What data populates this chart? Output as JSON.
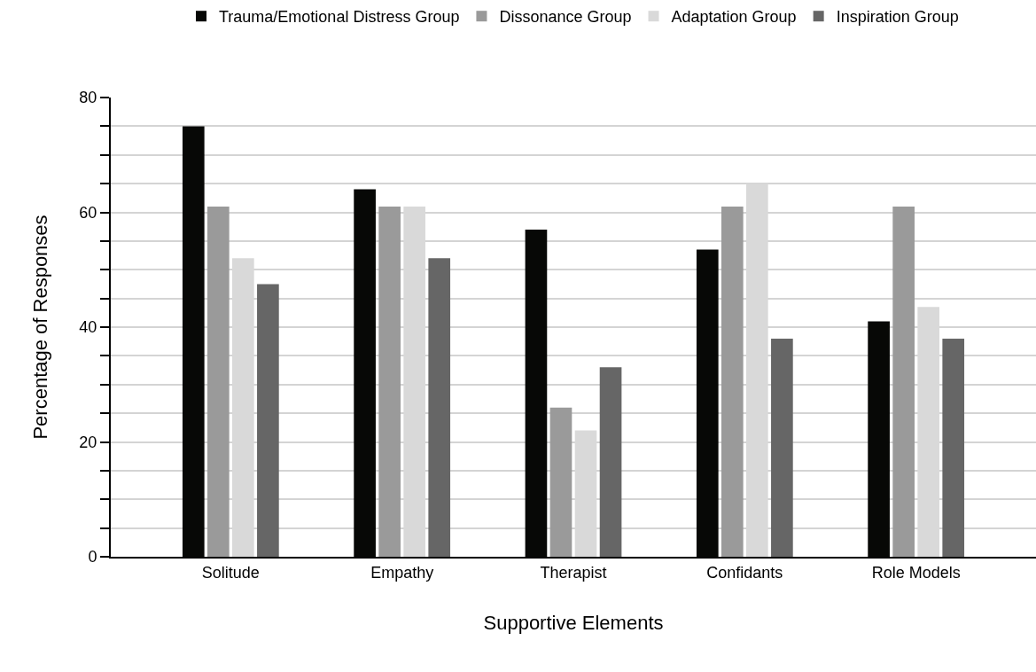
{
  "chart_data": {
    "type": "bar",
    "xlabel": "Supportive Elements",
    "ylabel": "Percentage of Responses",
    "categories": [
      "Solitude",
      "Empathy",
      "Therapist",
      "Confidants",
      "Role Models"
    ],
    "series": [
      {
        "name": "Trauma/Emotional Distress Group",
        "color": "#070806",
        "values": [
          75,
          64,
          57,
          53.5,
          41
        ]
      },
      {
        "name": "Dissonance Group",
        "color": "#9a9a9a",
        "values": [
          61,
          61,
          26,
          61,
          61
        ]
      },
      {
        "name": "Adaptation Group",
        "color": "#d9d9d9",
        "values": [
          52,
          61,
          22,
          65,
          43.5
        ]
      },
      {
        "name": "Inspiration Group",
        "color": "#666666",
        "values": [
          47.5,
          52,
          33,
          38,
          38
        ]
      }
    ],
    "ylim": [
      0,
      80
    ],
    "yticks": [
      0,
      {
        "value": 5,
        "label": null
      },
      {
        "value": 10,
        "label": null
      },
      {
        "value": 15,
        "label": null
      },
      20,
      {
        "value": 25,
        "label": null
      },
      {
        "value": 30,
        "label": null
      },
      {
        "value": 35,
        "label": null
      },
      40,
      {
        "value": 45,
        "label": null
      },
      {
        "value": 50,
        "label": null
      },
      {
        "value": 55,
        "label": null
      },
      60,
      {
        "value": 65,
        "label": null
      },
      {
        "value": 70,
        "label": null
      },
      {
        "value": 75,
        "label": null
      },
      80
    ],
    "grid": "y",
    "legend": "top"
  }
}
